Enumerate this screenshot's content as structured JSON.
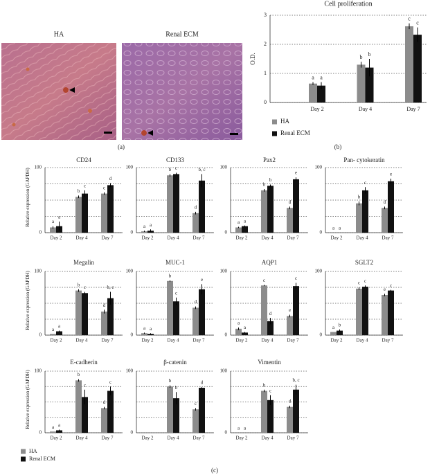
{
  "panel_labels": [
    "(a)",
    "(b)",
    "(c)"
  ],
  "images": [
    {
      "title": "HA"
    },
    {
      "title": "Renal ECM"
    }
  ],
  "chart_data": [
    {
      "type": "bar",
      "title": "Cell proliferation",
      "ylabel": "O.D.",
      "categories": [
        "Day 2",
        "Day 4",
        "Day 7"
      ],
      "ylim": [
        0,
        3
      ],
      "yticks": [
        0,
        1,
        2,
        3
      ],
      "grid": true,
      "legend": "bottom-left",
      "series": [
        {
          "name": "HA",
          "color": "#8c8c8c",
          "values": [
            0.65,
            1.3,
            2.62
          ],
          "errors": [
            0.05,
            0.1,
            0.1
          ],
          "letters": [
            "a",
            "b",
            "c"
          ]
        },
        {
          "name": "Renal ECM",
          "color": "#111111",
          "values": [
            0.58,
            1.2,
            2.33
          ],
          "errors": [
            0.12,
            0.3,
            0.25
          ],
          "letters": [
            "a",
            "b",
            "c"
          ]
        }
      ]
    },
    {
      "type": "bar",
      "title": "CD24",
      "ylabel": "Relative expression (GAPDH)",
      "categories": [
        "Day 2",
        "Day 4",
        "Day 7"
      ],
      "ylim": [
        0,
        100
      ],
      "yticks": [
        0,
        100
      ],
      "minor_grid": [
        25,
        50,
        75
      ],
      "grid": true,
      "legend": "bottom-left",
      "series": [
        {
          "name": "HA",
          "color": "#8c8c8c",
          "values": [
            8,
            55,
            60
          ],
          "errors": [
            2,
            2,
            2
          ],
          "letters": [
            "a",
            "b",
            "c"
          ]
        },
        {
          "name": "Renal ECM",
          "color": "#111111",
          "values": [
            10,
            60,
            73
          ],
          "errors": [
            7,
            5,
            3
          ],
          "letters": [
            "a",
            "c",
            "d"
          ]
        }
      ]
    },
    {
      "type": "bar",
      "title": "CD133",
      "categories": [
        "Day 2",
        "Day 4",
        "Day 7"
      ],
      "ylim": [
        0,
        100
      ],
      "yticks": [
        0,
        100
      ],
      "minor_grid": [
        25,
        50,
        75
      ],
      "grid": true,
      "series": [
        {
          "name": "HA",
          "color": "#8c8c8c",
          "values": [
            2,
            88,
            30
          ],
          "errors": [
            1,
            2,
            2
          ],
          "letters": [
            "a",
            "b",
            "d"
          ]
        },
        {
          "name": "Renal ECM",
          "color": "#111111",
          "values": [
            3,
            90,
            80
          ],
          "errors": [
            2,
            2,
            10
          ],
          "letters": [
            "a",
            "c",
            "b, c"
          ]
        }
      ]
    },
    {
      "type": "bar",
      "title": "Pax2",
      "categories": [
        "Day 2",
        "Day 4",
        "Day 7"
      ],
      "ylim": [
        0,
        100
      ],
      "yticks": [
        0,
        100
      ],
      "minor_grid": [
        25,
        50,
        75
      ],
      "grid": true,
      "series": [
        {
          "name": "HA",
          "color": "#8c8c8c",
          "values": [
            8,
            65,
            38
          ],
          "errors": [
            1,
            2,
            2
          ],
          "letters": [
            "a",
            "b",
            "d"
          ]
        },
        {
          "name": "Renal ECM",
          "color": "#111111",
          "values": [
            10,
            72,
            82
          ],
          "errors": [
            1,
            2,
            3
          ],
          "letters": [
            "a",
            "b",
            "e"
          ]
        }
      ]
    },
    {
      "type": "bar",
      "title": "Pan- cytokeratin",
      "categories": [
        "Day 2",
        "Day 4",
        "Day 7"
      ],
      "ylim": [
        0,
        100
      ],
      "yticks": [
        0,
        100
      ],
      "minor_grid": [
        25,
        50,
        75
      ],
      "grid": true,
      "series": [
        {
          "name": "HA",
          "color": "#8c8c8c",
          "values": [
            0,
            45,
            38
          ],
          "errors": [
            0,
            3,
            2
          ],
          "letters": [
            "a",
            "b",
            "d"
          ]
        },
        {
          "name": "Renal ECM",
          "color": "#111111",
          "values": [
            0,
            65,
            79
          ],
          "errors": [
            0,
            5,
            4
          ],
          "letters": [
            "a",
            "c",
            "e"
          ]
        }
      ]
    },
    {
      "type": "bar",
      "title": "Megalin",
      "ylabel": "Relative expression (GAPDH)",
      "categories": [
        "Day 2",
        "Day 4",
        "Day 7"
      ],
      "ylim": [
        0,
        100
      ],
      "yticks": [
        0,
        100
      ],
      "minor_grid": [
        25,
        50,
        75
      ],
      "grid": true,
      "series": [
        {
          "name": "HA",
          "color": "#8c8c8c",
          "values": [
            2,
            70,
            37
          ],
          "errors": [
            0,
            2,
            3
          ],
          "letters": [
            "a",
            "b",
            "d"
          ]
        },
        {
          "name": "Renal ECM",
          "color": "#111111",
          "values": [
            6,
            66,
            58
          ],
          "errors": [
            1,
            2,
            10
          ],
          "letters": [
            "a",
            "c",
            "b, c"
          ]
        }
      ]
    },
    {
      "type": "bar",
      "title": "MUC-1",
      "categories": [
        "Day 2",
        "Day 4",
        "Day 7"
      ],
      "ylim": [
        0,
        100
      ],
      "yticks": [
        0,
        100
      ],
      "minor_grid": [
        25,
        50,
        75
      ],
      "grid": true,
      "series": [
        {
          "name": "HA",
          "color": "#8c8c8c",
          "values": [
            3,
            85,
            43
          ],
          "errors": [
            1,
            1,
            2
          ],
          "letters": [
            "a",
            "b",
            "d"
          ]
        },
        {
          "name": "Renal ECM",
          "color": "#111111",
          "values": [
            2,
            53,
            72
          ],
          "errors": [
            1,
            6,
            8
          ],
          "letters": [
            "a",
            "c",
            "e"
          ]
        }
      ]
    },
    {
      "type": "bar",
      "title": "AQP1",
      "categories": [
        "Day 2",
        "Day 4",
        "Day 7"
      ],
      "ylim": [
        0,
        100
      ],
      "yticks": [
        0,
        100
      ],
      "minor_grid": [
        25,
        50,
        75
      ],
      "grid": true,
      "series": [
        {
          "name": "HA",
          "color": "#8c8c8c",
          "values": [
            10,
            78,
            30
          ],
          "errors": [
            2,
            1,
            2
          ],
          "letters": [
            "a",
            "c",
            "e"
          ]
        },
        {
          "name": "Renal ECM",
          "color": "#111111",
          "values": [
            4,
            22,
            77
          ],
          "errors": [
            1,
            5,
            5
          ],
          "letters": [
            "a",
            "d",
            "c"
          ]
        }
      ]
    },
    {
      "type": "bar",
      "title": "SGLT2",
      "categories": [
        "Day 2",
        "Day 4",
        "Day 7"
      ],
      "ylim": [
        0,
        100
      ],
      "yticks": [
        0,
        100
      ],
      "minor_grid": [
        25,
        50,
        75
      ],
      "grid": true,
      "series": [
        {
          "name": "HA",
          "color": "#8c8c8c",
          "values": [
            5,
            73,
            63
          ],
          "errors": [
            0,
            2,
            2
          ],
          "letters": [
            "a",
            "c",
            "e"
          ]
        },
        {
          "name": "Renal ECM",
          "color": "#111111",
          "values": [
            7,
            76,
            70
          ],
          "errors": [
            2,
            2,
            1
          ],
          "letters": [
            "b",
            "c",
            "c"
          ]
        }
      ]
    },
    {
      "type": "bar",
      "title": "E-cadherin",
      "ylabel": "Relative expression (GAPDH)",
      "categories": [
        "Day 2",
        "Day 4",
        "Day 7"
      ],
      "ylim": [
        0,
        100
      ],
      "yticks": [
        0,
        100
      ],
      "minor_grid": [
        25,
        50,
        75
      ],
      "grid": true,
      "series": [
        {
          "name": "HA",
          "color": "#8c8c8c",
          "values": [
            2,
            85,
            40
          ],
          "errors": [
            0,
            2,
            2
          ],
          "letters": [
            "a",
            "b",
            "d"
          ]
        },
        {
          "name": "Renal ECM",
          "color": "#111111",
          "values": [
            4,
            58,
            68
          ],
          "errors": [
            1,
            12,
            7
          ],
          "letters": [
            "a",
            "c",
            "c"
          ]
        }
      ]
    },
    {
      "type": "bar",
      "title": "β-catenin",
      "categories": [
        "Day 2",
        "Day 4",
        "Day 7"
      ],
      "ylim": [
        0,
        100
      ],
      "yticks": [
        0,
        100
      ],
      "minor_grid": [
        25,
        50,
        75
      ],
      "grid": true,
      "series": [
        {
          "name": "HA",
          "color": "#8c8c8c",
          "values": [
            0,
            75,
            38
          ],
          "errors": [
            0,
            2,
            2
          ],
          "letters": [
            null,
            "b",
            "c"
          ]
        },
        {
          "name": "Renal ECM",
          "color": "#111111",
          "values": [
            0,
            56,
            73
          ],
          "errors": [
            0,
            10,
            1
          ],
          "letters": [
            null,
            "b",
            "d"
          ]
        }
      ]
    },
    {
      "type": "bar",
      "title": "Vimentin",
      "categories": [
        "Day 2",
        "Day 4",
        "Day 7"
      ],
      "ylim": [
        0,
        100
      ],
      "yticks": [
        0,
        100
      ],
      "minor_grid": [
        25,
        50,
        75
      ],
      "grid": true,
      "series": [
        {
          "name": "HA",
          "color": "#8c8c8c",
          "values": [
            0,
            68,
            42
          ],
          "errors": [
            0,
            2,
            2
          ],
          "letters": [
            "a",
            "b",
            "d"
          ]
        },
        {
          "name": "Renal ECM",
          "color": "#111111",
          "values": [
            0,
            53,
            70
          ],
          "errors": [
            0,
            8,
            8
          ],
          "letters": [
            "a",
            "c",
            "b, c"
          ]
        }
      ]
    }
  ]
}
